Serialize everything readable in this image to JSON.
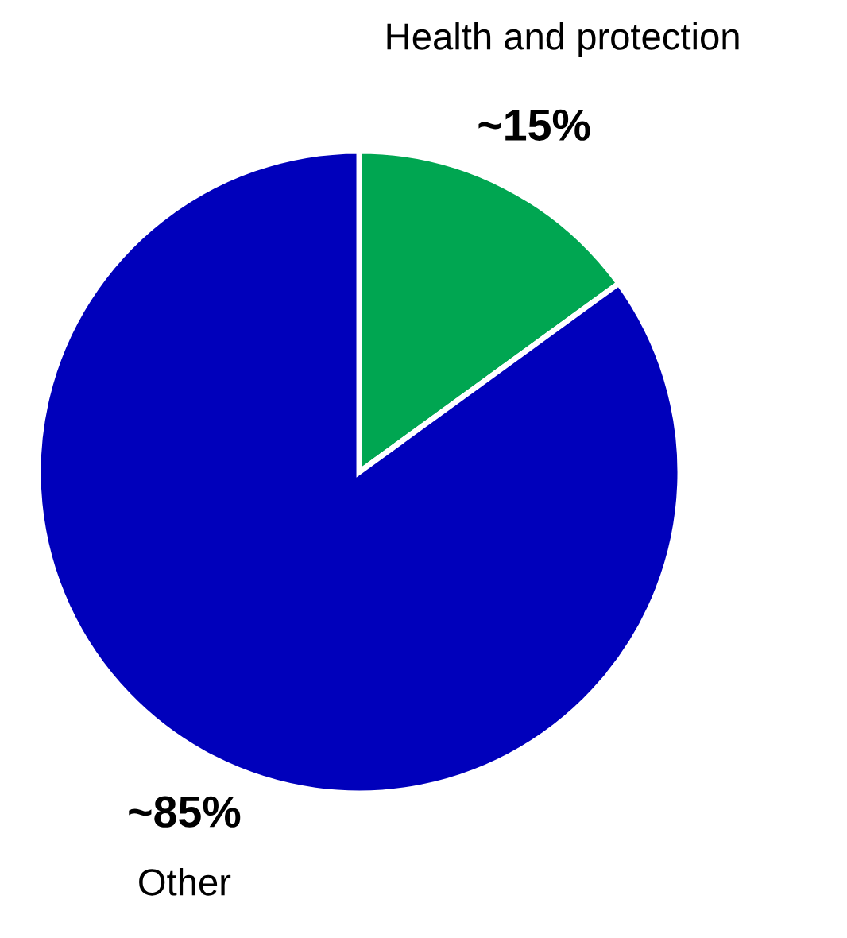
{
  "chart_data": {
    "type": "pie",
    "categories": [
      "Health and protection",
      "Other"
    ],
    "values": [
      15,
      85
    ],
    "value_labels": [
      "~15%",
      "~85%"
    ],
    "colors": [
      "#00a651",
      "#0000bb"
    ]
  }
}
